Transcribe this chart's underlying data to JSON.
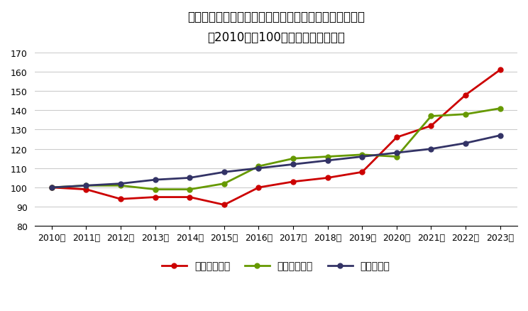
{
  "title_line1": "賃金改定率とマクドナルド・モスバーガーの客単価推移",
  "title_line2": "（2010年を100とした場合の指数）",
  "years": [
    "2010年",
    "2011年",
    "2012年",
    "2013年",
    "2014年",
    "2015年",
    "2016年",
    "2017年",
    "2018年",
    "2019年",
    "2020年",
    "2021年",
    "2022年",
    "2023年"
  ],
  "mcdonalds": [
    100,
    99,
    94,
    95,
    95,
    91,
    100,
    103,
    105,
    108,
    126,
    132,
    148,
    161
  ],
  "mos": [
    100,
    101,
    101,
    99,
    99,
    102,
    111,
    115,
    116,
    117,
    116,
    137,
    138,
    141
  ],
  "wage": [
    100,
    101,
    102,
    104,
    105,
    108,
    110,
    112,
    114,
    116,
    118,
    120,
    123,
    127
  ],
  "mcdonalds_color": "#CC0000",
  "mos_color": "#669900",
  "wage_color": "#333366",
  "ylim": [
    80,
    170
  ],
  "yticks": [
    80,
    90,
    100,
    110,
    120,
    130,
    140,
    150,
    160,
    170
  ],
  "legend_labels": [
    "マクドナルド",
    "モスバーガー",
    "賃金改定率"
  ],
  "bg_color": "#ffffff",
  "grid_color": "#cccccc",
  "marker": "o",
  "markersize": 5,
  "linewidth": 2.0,
  "title_fontsize": 12,
  "tick_fontsize": 9,
  "legend_fontsize": 10
}
